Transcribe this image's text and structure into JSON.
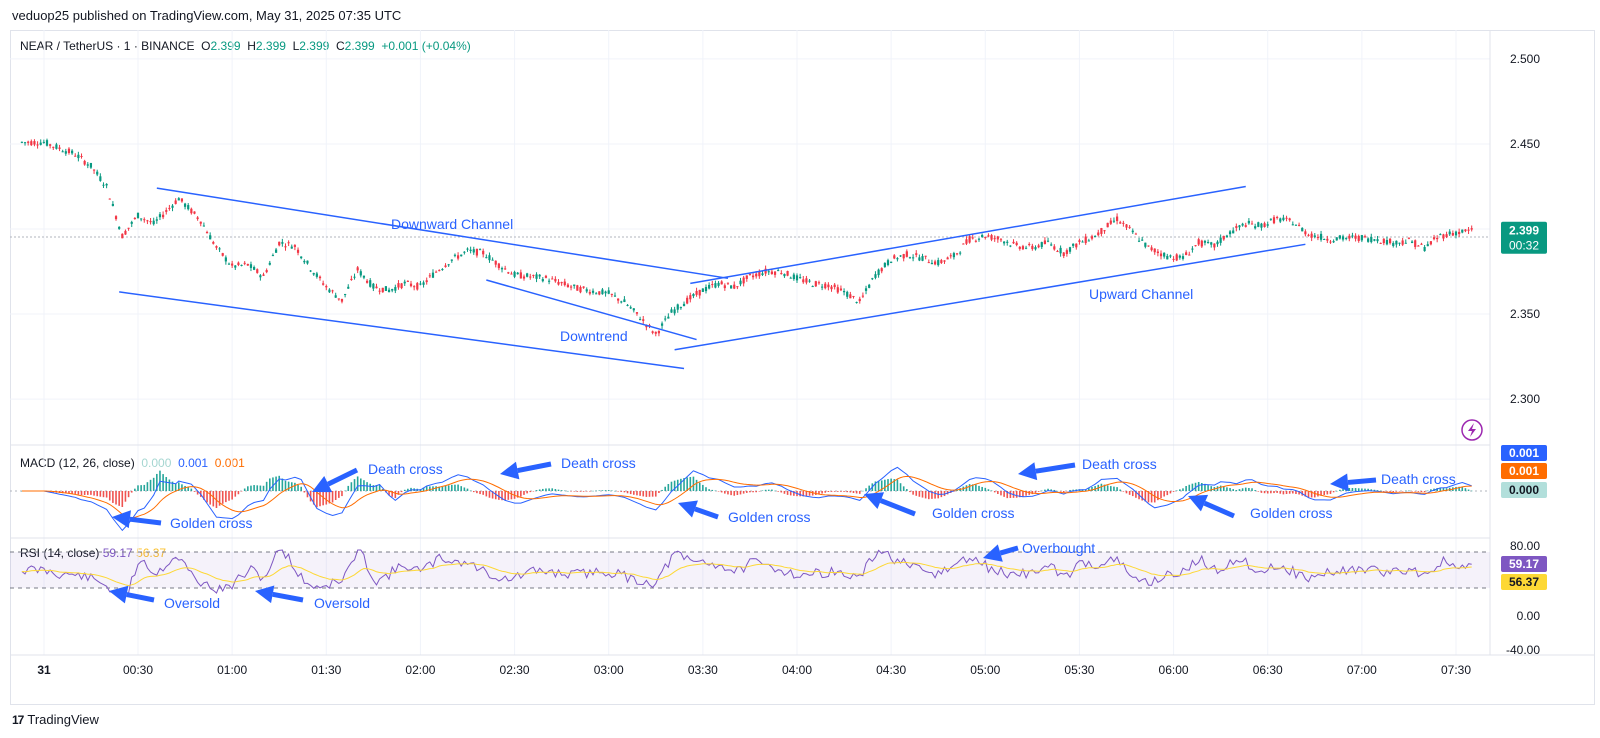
{
  "header": {
    "attribution": "veduop25 published on TradingView.com, May 31, 2025 07:35 UTC"
  },
  "legend": {
    "symbol": "NEAR / TetherUS · 1 · BINANCE",
    "o_label": "O",
    "o": "2.399",
    "h_label": "H",
    "h": "2.399",
    "l_label": "L",
    "l": "2.399",
    "c_label": "C",
    "c": "2.399",
    "change": "+0.001 (+0.04%)"
  },
  "macd_legend": {
    "name": "MACD (12, 26, close)",
    "hist": "0.000",
    "macd": "0.001",
    "signal": "0.001"
  },
  "rsi_legend": {
    "name": "RSI (14, close)",
    "rsi": "59.17",
    "ma": "56.37"
  },
  "footer": {
    "logo": "17",
    "brand": "TradingView"
  },
  "colors": {
    "up": "#089981",
    "down": "#f23645",
    "annotation": "#2962ff",
    "macd_line": "#2962ff",
    "signal_line": "#ff6d00",
    "rsi_line": "#7e57c2",
    "rsi_ma": "#fdd835",
    "hist_up": "#26a69a",
    "hist_down": "#ef5350"
  },
  "chart_data": {
    "type": "candlestick",
    "symbol": "NEAR / TetherUS",
    "interval": "1",
    "exchange": "BINANCE",
    "price_axis": {
      "ticks": [
        "2.500",
        "2.450",
        "2.400",
        "2.350",
        "2.300"
      ],
      "range": [
        2.273,
        2.517
      ]
    },
    "time_axis": {
      "ticks": [
        "31",
        "00:30",
        "01:00",
        "01:30",
        "02:00",
        "02:30",
        "03:00",
        "03:30",
        "04:00",
        "04:30",
        "05:00",
        "05:30",
        "06:00",
        "06:30",
        "07:00",
        "07:30"
      ]
    },
    "current_price": "2.399",
    "countdown": "00:32",
    "price_path": [
      {
        "t": "00:00",
        "p": 2.451
      },
      {
        "t": "00:10",
        "p": 2.444
      },
      {
        "t": "00:15",
        "p": 2.437
      },
      {
        "t": "00:20",
        "p": 2.425
      },
      {
        "t": "00:25",
        "p": 2.396
      },
      {
        "t": "00:30",
        "p": 2.408
      },
      {
        "t": "00:35",
        "p": 2.403
      },
      {
        "t": "00:43",
        "p": 2.418
      },
      {
        "t": "00:50",
        "p": 2.405
      },
      {
        "t": "00:55",
        "p": 2.389
      },
      {
        "t": "01:00",
        "p": 2.378
      },
      {
        "t": "01:05",
        "p": 2.379
      },
      {
        "t": "01:10",
        "p": 2.372
      },
      {
        "t": "01:15",
        "p": 2.392
      },
      {
        "t": "01:20",
        "p": 2.39
      },
      {
        "t": "01:25",
        "p": 2.377
      },
      {
        "t": "01:30",
        "p": 2.366
      },
      {
        "t": "01:35",
        "p": 2.358
      },
      {
        "t": "01:40",
        "p": 2.376
      },
      {
        "t": "01:45",
        "p": 2.366
      },
      {
        "t": "01:50",
        "p": 2.364
      },
      {
        "t": "01:55",
        "p": 2.368
      },
      {
        "t": "02:00",
        "p": 2.366
      },
      {
        "t": "02:05",
        "p": 2.375
      },
      {
        "t": "02:10",
        "p": 2.382
      },
      {
        "t": "02:15",
        "p": 2.387
      },
      {
        "t": "02:20",
        "p": 2.386
      },
      {
        "t": "02:25",
        "p": 2.379
      },
      {
        "t": "02:30",
        "p": 2.373
      },
      {
        "t": "02:40",
        "p": 2.371
      },
      {
        "t": "02:50",
        "p": 2.365
      },
      {
        "t": "03:00",
        "p": 2.362
      },
      {
        "t": "03:05",
        "p": 2.357
      },
      {
        "t": "03:10",
        "p": 2.348
      },
      {
        "t": "03:15",
        "p": 2.338
      },
      {
        "t": "03:20",
        "p": 2.351
      },
      {
        "t": "03:25",
        "p": 2.358
      },
      {
        "t": "03:30",
        "p": 2.364
      },
      {
        "t": "03:35",
        "p": 2.368
      },
      {
        "t": "03:40",
        "p": 2.366
      },
      {
        "t": "03:45",
        "p": 2.372
      },
      {
        "t": "03:50",
        "p": 2.375
      },
      {
        "t": "03:55",
        "p": 2.375
      },
      {
        "t": "04:00",
        "p": 2.371
      },
      {
        "t": "04:05",
        "p": 2.368
      },
      {
        "t": "04:10",
        "p": 2.367
      },
      {
        "t": "04:15",
        "p": 2.363
      },
      {
        "t": "04:20",
        "p": 2.357
      },
      {
        "t": "04:25",
        "p": 2.373
      },
      {
        "t": "04:30",
        "p": 2.382
      },
      {
        "t": "04:35",
        "p": 2.385
      },
      {
        "t": "04:40",
        "p": 2.383
      },
      {
        "t": "04:45",
        "p": 2.38
      },
      {
        "t": "04:50",
        "p": 2.384
      },
      {
        "t": "04:55",
        "p": 2.394
      },
      {
        "t": "05:00",
        "p": 2.396
      },
      {
        "t": "05:05",
        "p": 2.394
      },
      {
        "t": "05:10",
        "p": 2.39
      },
      {
        "t": "05:15",
        "p": 2.389
      },
      {
        "t": "05:20",
        "p": 2.392
      },
      {
        "t": "05:25",
        "p": 2.386
      },
      {
        "t": "05:30",
        "p": 2.392
      },
      {
        "t": "05:35",
        "p": 2.396
      },
      {
        "t": "05:42",
        "p": 2.406
      },
      {
        "t": "05:47",
        "p": 2.398
      },
      {
        "t": "05:52",
        "p": 2.389
      },
      {
        "t": "05:58",
        "p": 2.384
      },
      {
        "t": "06:03",
        "p": 2.383
      },
      {
        "t": "06:08",
        "p": 2.392
      },
      {
        "t": "06:13",
        "p": 2.39
      },
      {
        "t": "06:18",
        "p": 2.398
      },
      {
        "t": "06:23",
        "p": 2.403
      },
      {
        "t": "06:28",
        "p": 2.402
      },
      {
        "t": "06:33",
        "p": 2.406
      },
      {
        "t": "06:38",
        "p": 2.404
      },
      {
        "t": "06:43",
        "p": 2.397
      },
      {
        "t": "06:50",
        "p": 2.394
      },
      {
        "t": "06:58",
        "p": 2.395
      },
      {
        "t": "07:05",
        "p": 2.394
      },
      {
        "t": "07:10",
        "p": 2.392
      },
      {
        "t": "07:15",
        "p": 2.393
      },
      {
        "t": "07:20",
        "p": 2.389
      },
      {
        "t": "07:25",
        "p": 2.396
      },
      {
        "t": "07:30",
        "p": 2.398
      },
      {
        "t": "07:35",
        "p": 2.399
      }
    ],
    "annotations": [
      {
        "text": "Downward Channel"
      },
      {
        "text": "Downtrend"
      },
      {
        "text": "Upward Channel"
      }
    ],
    "macd": {
      "axis_ticks": [
        "0.001",
        "0.001",
        "0.000"
      ],
      "current": {
        "macd": "0.001",
        "signal": "0.001",
        "hist": "0.000"
      },
      "annotations": [
        "Death cross",
        "Death cross",
        "Death cross",
        "Death cross",
        "Golden cross",
        "Golden cross",
        "Golden cross",
        "Golden cross"
      ]
    },
    "rsi": {
      "axis_ticks": [
        "80.00",
        "40.00",
        "0.00",
        "-40.00"
      ],
      "current": {
        "rsi": "59.17",
        "ma": "56.37"
      },
      "annotations": [
        "Oversold",
        "Oversold",
        "Overbought"
      ]
    }
  }
}
